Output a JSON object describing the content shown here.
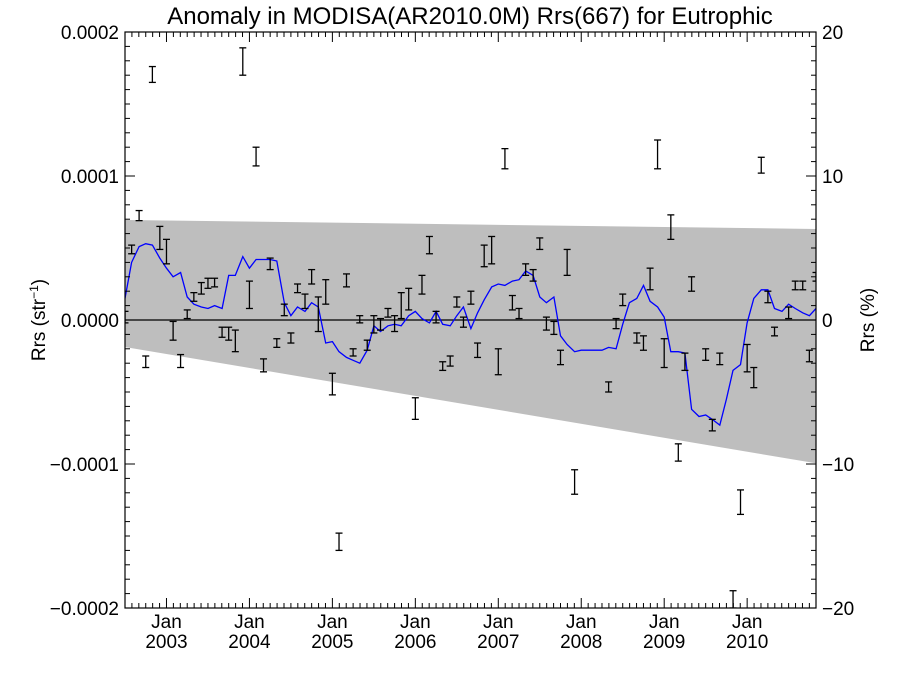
{
  "chart_data": {
    "type": "scatter",
    "title": "Anomaly in MODISA(AR2010.0M) Rrs(667) for Eutrophic",
    "ylabel_left": "Rrs (str⁻¹)",
    "ylabel_right": "Rrs (%)",
    "xlim": [
      2002.5,
      2010.83
    ],
    "ylim": [
      -0.0002,
      0.0002
    ],
    "ylim_right": [
      -20,
      20
    ],
    "x_ticks": [
      {
        "x": 2003.0,
        "month": "Jan",
        "year": "2003"
      },
      {
        "x": 2004.0,
        "month": "Jan",
        "year": "2004"
      },
      {
        "x": 2005.0,
        "month": "Jan",
        "year": "2005"
      },
      {
        "x": 2006.0,
        "month": "Jan",
        "year": "2006"
      },
      {
        "x": 2007.0,
        "month": "Jan",
        "year": "2007"
      },
      {
        "x": 2008.0,
        "month": "Jan",
        "year": "2008"
      },
      {
        "x": 2009.0,
        "month": "Jan",
        "year": "2009"
      },
      {
        "x": 2010.0,
        "month": "Jan",
        "year": "2010"
      }
    ],
    "y_ticks_left": [
      {
        "v": 0.0002,
        "label": "0.0002"
      },
      {
        "v": 0.0001,
        "label": "0.0001"
      },
      {
        "v": 0.0,
        "label": "0.0000"
      },
      {
        "v": -0.0001,
        "label": "−0.0001"
      },
      {
        "v": -0.0002,
        "label": "−0.0002"
      }
    ],
    "y_ticks_right": [
      {
        "v": 20,
        "label": "20"
      },
      {
        "v": 10,
        "label": "10"
      },
      {
        "v": 0,
        "label": "0"
      },
      {
        "v": -10,
        "label": "−10"
      },
      {
        "v": -20,
        "label": "−20"
      }
    ],
    "band": {
      "x": [
        2002.5,
        2010.83
      ],
      "upper": [
        6.95e-05,
        6.32e-05
      ],
      "lower": [
        -1.88e-05,
        -9.95e-05
      ],
      "color": "#bebebe"
    },
    "zero_line": 0,
    "line_color": "#0000ff",
    "line": {
      "x": [
        2002.5,
        2002.58,
        2002.67,
        2002.75,
        2002.83,
        2002.92,
        2003.0,
        2003.08,
        2003.17,
        2003.25,
        2003.33,
        2003.42,
        2003.5,
        2003.58,
        2003.67,
        2003.75,
        2003.83,
        2003.92,
        2004.0,
        2004.08,
        2004.17,
        2004.25,
        2004.33,
        2004.42,
        2004.5,
        2004.58,
        2004.67,
        2004.75,
        2004.83,
        2004.92,
        2005.0,
        2005.08,
        2005.17,
        2005.25,
        2005.33,
        2005.42,
        2005.5,
        2005.58,
        2005.67,
        2005.75,
        2005.83,
        2005.92,
        2006.0,
        2006.08,
        2006.17,
        2006.25,
        2006.33,
        2006.42,
        2006.5,
        2006.58,
        2006.67,
        2006.75,
        2006.83,
        2006.92,
        2007.0,
        2007.08,
        2007.17,
        2007.25,
        2007.33,
        2007.42,
        2007.5,
        2007.58,
        2007.67,
        2007.75,
        2007.83,
        2007.92,
        2008.0,
        2008.08,
        2008.17,
        2008.25,
        2008.33,
        2008.42,
        2008.5,
        2008.58,
        2008.67,
        2008.75,
        2008.83,
        2008.92,
        2009.0,
        2009.08,
        2009.17,
        2009.25,
        2009.33,
        2009.42,
        2009.5,
        2009.58,
        2009.67,
        2009.75,
        2009.83,
        2009.92,
        2010.0,
        2010.08,
        2010.17,
        2010.25,
        2010.33,
        2010.42,
        2010.5,
        2010.58,
        2010.67,
        2010.75,
        2010.83
      ],
      "y": [
        1.5e-05,
        4e-05,
        5.1e-05,
        5.3e-05,
        5.2e-05,
        4.3e-05,
        3.6e-05,
        3e-05,
        3.3e-05,
        1.6e-05,
        1.1e-05,
        9e-06,
        8e-06,
        1e-05,
        8e-06,
        3.1e-05,
        3.1e-05,
        4.4e-05,
        3.6e-05,
        4.2e-05,
        4.2e-05,
        4.2e-05,
        4.1e-05,
        1.2e-05,
        3e-06,
        9e-06,
        6e-06,
        1.2e-05,
        9e-06,
        -1.6e-05,
        -1.5e-05,
        -2.2e-05,
        -2.6e-05,
        -2.8e-05,
        -3e-05,
        -2.1e-05,
        -4e-06,
        -8e-06,
        -4e-06,
        -3e-06,
        -4e-06,
        3e-06,
        6e-06,
        1e-06,
        -2e-06,
        6e-06,
        -3e-06,
        -4e-06,
        3e-06,
        9e-06,
        -6e-06,
        5e-06,
        1.4e-05,
        2.3e-05,
        2.5e-05,
        2.4e-05,
        2.7e-05,
        2.8e-05,
        3.4e-05,
        3.1e-05,
        1.6e-05,
        1.2e-05,
        1.6e-05,
        -1.1e-05,
        -1.7e-05,
        -2.2e-05,
        -2.1e-05,
        -2.1e-05,
        -2.1e-05,
        -2.1e-05,
        -1.9e-05,
        -2e-05,
        -3e-06,
        1.2e-05,
        1.5e-05,
        2.4e-05,
        1.3e-05,
        9e-06,
        2e-06,
        -2.2e-05,
        -2.2e-05,
        -2.3e-05,
        -6.2e-05,
        -6.7e-05,
        -6.6e-05,
        -6.9e-05,
        -7.3e-05,
        -5.5e-05,
        -3.5e-05,
        -3.1e-05,
        -2e-06,
        1.5e-05,
        2.1e-05,
        2.1e-05,
        8e-06,
        6e-06,
        1.1e-05,
        8e-06,
        5e-06,
        3e-06,
        8e-06
      ],
      "note": "blue smoothed line"
    },
    "points": [
      {
        "x": 2002.5,
        "lo": -2e-06,
        "hi": 6e-06
      },
      {
        "x": 2002.58,
        "lo": 4.6e-05,
        "hi": 5.2e-05
      },
      {
        "x": 2002.67,
        "lo": 6.9e-05,
        "hi": 7.6e-05
      },
      {
        "x": 2002.75,
        "lo": -3.3e-05,
        "hi": -2.5e-05
      },
      {
        "x": 2002.83,
        "lo": 0.000165,
        "hi": 0.000176
      },
      {
        "x": 2002.92,
        "lo": 4.9e-05,
        "hi": 6.5e-05
      },
      {
        "x": 2003.0,
        "lo": 3.9e-05,
        "hi": 5.6e-05
      },
      {
        "x": 2003.08,
        "lo": -1.4e-05,
        "hi": -1e-06
      },
      {
        "x": 2003.17,
        "lo": -3.3e-05,
        "hi": -2.4e-05
      },
      {
        "x": 2003.25,
        "lo": 1e-06,
        "hi": 7e-06
      },
      {
        "x": 2003.33,
        "lo": 1.3e-05,
        "hi": 1.9e-05
      },
      {
        "x": 2003.42,
        "lo": 1.8e-05,
        "hi": 2.6e-05
      },
      {
        "x": 2003.5,
        "lo": 2.2e-05,
        "hi": 2.9e-05
      },
      {
        "x": 2003.58,
        "lo": 2.3e-05,
        "hi": 2.9e-05
      },
      {
        "x": 2003.67,
        "lo": -1.2e-05,
        "hi": -5e-06
      },
      {
        "x": 2003.75,
        "lo": -1.4e-05,
        "hi": -5e-06
      },
      {
        "x": 2003.83,
        "lo": -2.2e-05,
        "hi": -7e-06
      },
      {
        "x": 2003.92,
        "lo": 0.00017,
        "hi": 0.000189
      },
      {
        "x": 2004.0,
        "lo": 8e-06,
        "hi": 2.7e-05
      },
      {
        "x": 2004.08,
        "lo": 0.000107,
        "hi": 0.00012
      },
      {
        "x": 2004.17,
        "lo": -3.6e-05,
        "hi": -2.7e-05
      },
      {
        "x": 2004.25,
        "lo": 3.5e-05,
        "hi": 4.3e-05
      },
      {
        "x": 2004.33,
        "lo": -1.9e-05,
        "hi": -1.3e-05
      },
      {
        "x": 2004.42,
        "lo": 3e-06,
        "hi": 1.1e-05
      },
      {
        "x": 2004.5,
        "lo": -1.6e-05,
        "hi": -9e-06
      },
      {
        "x": 2004.58,
        "lo": 1.9e-05,
        "hi": 2.5e-05
      },
      {
        "x": 2004.67,
        "lo": 8e-06,
        "hi": 1.8e-05
      },
      {
        "x": 2004.75,
        "lo": 2.5e-05,
        "hi": 3.5e-05
      },
      {
        "x": 2004.83,
        "lo": -8e-06,
        "hi": 1.6e-05
      },
      {
        "x": 2004.92,
        "lo": 1.1e-05,
        "hi": 2.8e-05
      },
      {
        "x": 2005.0,
        "lo": -5.2e-05,
        "hi": -3.7e-05
      },
      {
        "x": 2005.08,
        "lo": -0.00016,
        "hi": -0.000148
      },
      {
        "x": 2005.17,
        "lo": 2.3e-05,
        "hi": 3.2e-05
      },
      {
        "x": 2005.25,
        "lo": -2.5e-05,
        "hi": -2e-05
      },
      {
        "x": 2005.33,
        "lo": -2e-06,
        "hi": 3e-06
      },
      {
        "x": 2005.42,
        "lo": -2.1e-05,
        "hi": -1.4e-05
      },
      {
        "x": 2005.5,
        "lo": -9e-06,
        "hi": 3e-06
      },
      {
        "x": 2005.58,
        "lo": -7e-06,
        "hi": 1e-06
      },
      {
        "x": 2005.67,
        "lo": 2e-06,
        "hi": 8e-06
      },
      {
        "x": 2005.75,
        "lo": -8e-06,
        "hi": 3e-06
      },
      {
        "x": 2005.83,
        "lo": 1e-06,
        "hi": 1.9e-05
      },
      {
        "x": 2005.92,
        "lo": 7e-06,
        "hi": 2.2e-05
      },
      {
        "x": 2006.0,
        "lo": -6.9e-05,
        "hi": -5.4e-05
      },
      {
        "x": 2006.08,
        "lo": 1.8e-05,
        "hi": 3.1e-05
      },
      {
        "x": 2006.17,
        "lo": 4.6e-05,
        "hi": 5.8e-05
      },
      {
        "x": 2006.25,
        "lo": -2e-06,
        "hi": 6e-06
      },
      {
        "x": 2006.33,
        "lo": -3.5e-05,
        "hi": -2.9e-05
      },
      {
        "x": 2006.42,
        "lo": -3.2e-05,
        "hi": -2.5e-05
      },
      {
        "x": 2006.5,
        "lo": 9e-06,
        "hi": 1.6e-05
      },
      {
        "x": 2006.58,
        "lo": -5e-06,
        "hi": 2e-06
      },
      {
        "x": 2006.67,
        "lo": 1.1e-05,
        "hi": 2e-05
      },
      {
        "x": 2006.75,
        "lo": -2.6e-05,
        "hi": -1.6e-05
      },
      {
        "x": 2006.83,
        "lo": 3.7e-05,
        "hi": 5.2e-05
      },
      {
        "x": 2006.92,
        "lo": 3.9e-05,
        "hi": 5.8e-05
      },
      {
        "x": 2007.0,
        "lo": -3.8e-05,
        "hi": -2e-05
      },
      {
        "x": 2007.08,
        "lo": 0.000105,
        "hi": 0.000119
      },
      {
        "x": 2007.17,
        "lo": 7e-06,
        "hi": 1.7e-05
      },
      {
        "x": 2007.25,
        "lo": 1e-06,
        "hi": 8e-06
      },
      {
        "x": 2007.33,
        "lo": 3.1e-05,
        "hi": 3.9e-05
      },
      {
        "x": 2007.42,
        "lo": 2.7e-05,
        "hi": 3.5e-05
      },
      {
        "x": 2007.5,
        "lo": 4.9e-05,
        "hi": 5.7e-05
      },
      {
        "x": 2007.58,
        "lo": -7e-06,
        "hi": 2e-06
      },
      {
        "x": 2007.67,
        "lo": -1e-05,
        "hi": -1e-06
      },
      {
        "x": 2007.75,
        "lo": -3.1e-05,
        "hi": -2.1e-05
      },
      {
        "x": 2007.83,
        "lo": 3.1e-05,
        "hi": 4.9e-05
      },
      {
        "x": 2007.92,
        "lo": -0.000121,
        "hi": -0.000104
      },
      {
        "x": 2008.33,
        "lo": -5e-05,
        "hi": -4.3e-05
      },
      {
        "x": 2008.42,
        "lo": -6e-06,
        "hi": 1e-06
      },
      {
        "x": 2008.5,
        "lo": 1e-05,
        "hi": 1.8e-05
      },
      {
        "x": 2008.67,
        "lo": -1.6e-05,
        "hi": -9e-06
      },
      {
        "x": 2008.75,
        "lo": -2.1e-05,
        "hi": -1.1e-05
      },
      {
        "x": 2008.83,
        "lo": 2.1e-05,
        "hi": 3.6e-05
      },
      {
        "x": 2008.92,
        "lo": 0.000105,
        "hi": 0.000125
      },
      {
        "x": 2009.0,
        "lo": -3.3e-05,
        "hi": -1.3e-05
      },
      {
        "x": 2009.08,
        "lo": 5.6e-05,
        "hi": 7.3e-05
      },
      {
        "x": 2009.17,
        "lo": -9.8e-05,
        "hi": -8.6e-05
      },
      {
        "x": 2009.25,
        "lo": -3.5e-05,
        "hi": -2.3e-05
      },
      {
        "x": 2009.33,
        "lo": 2e-05,
        "hi": 3e-05
      },
      {
        "x": 2009.5,
        "lo": -2.8e-05,
        "hi": -2e-05
      },
      {
        "x": 2009.58,
        "lo": -7.7e-05,
        "hi": -6.9e-05
      },
      {
        "x": 2009.67,
        "lo": -3.1e-05,
        "hi": -2.3e-05
      },
      {
        "x": 2009.83,
        "lo": -0.0002,
        "hi": -0.000188
      },
      {
        "x": 2009.92,
        "lo": -0.000135,
        "hi": -0.000118
      },
      {
        "x": 2010.0,
        "lo": -3.6e-05,
        "hi": -1.7e-05
      },
      {
        "x": 2010.08,
        "lo": -4.7e-05,
        "hi": -3.3e-05
      },
      {
        "x": 2010.17,
        "lo": 0.000102,
        "hi": 0.000113
      },
      {
        "x": 2010.25,
        "lo": 1.2e-05,
        "hi": 2e-05
      },
      {
        "x": 2010.33,
        "lo": -1.1e-05,
        "hi": -5e-06
      },
      {
        "x": 2010.5,
        "lo": 1e-06,
        "hi": 9e-06
      },
      {
        "x": 2010.58,
        "lo": 2.1e-05,
        "hi": 2.7e-05
      },
      {
        "x": 2010.67,
        "lo": 2.1e-05,
        "hi": 2.7e-05
      },
      {
        "x": 2010.75,
        "lo": -2.9e-05,
        "hi": -2.1e-05
      },
      {
        "x": 2010.83,
        "lo": 2.7e-05,
        "hi": 3.3e-05
      }
    ]
  }
}
